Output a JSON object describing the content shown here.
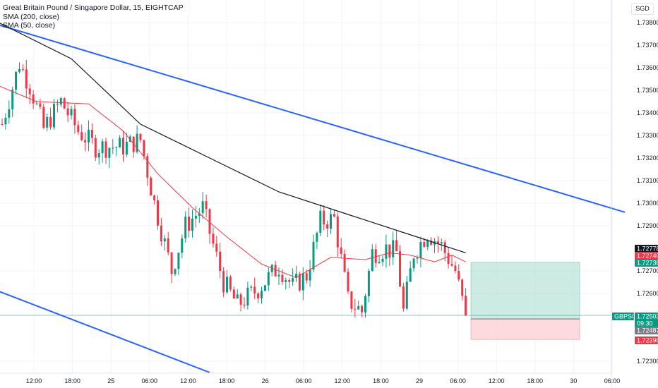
{
  "legend": {
    "title": "Great Britain Pound / Singapore Dollar, 15, EIGHTCAP",
    "sma200": "SMA (200, close)",
    "sma50": "SMA (50, close)"
  },
  "currency_button": "SGD",
  "colors": {
    "up": "#089981",
    "down": "#f23645",
    "sma200": "#131722",
    "sma50": "#f23645",
    "trendline": "#2962ff",
    "profit_zone": "#b2dfd4",
    "loss_zone": "#fbcdd2",
    "grid": "#f0f3fa"
  },
  "chart_data": {
    "type": "candlestick",
    "symbol": "GBPSGD",
    "interval": "15",
    "y_axis": {
      "min": 1.7225,
      "max": 1.7385,
      "ticks": [
        "1.73800",
        "1.73700",
        "1.73600",
        "1.73500",
        "1.73400",
        "1.73300",
        "1.73200",
        "1.73100",
        "1.73000",
        "1.72900",
        "1.72700",
        "1.72600",
        "1.72300"
      ]
    },
    "x_axis": {
      "ticks": [
        "12:00",
        "18:00",
        "25",
        "06:00",
        "12:00",
        "18:00",
        "26",
        "06:00",
        "12:00",
        "18:00",
        "29",
        "06:00",
        "12:00",
        "18:00",
        "30",
        "06:00"
      ]
    },
    "price_badges": [
      {
        "label": "1.72778",
        "kind": "sma200"
      },
      {
        "label": "1.72740",
        "kind": "sma50"
      },
      {
        "label": "1.72738",
        "kind": "target"
      },
      {
        "label": "GBPSGD",
        "kind": "symbol"
      },
      {
        "label": "1.72503",
        "kind": "last"
      },
      {
        "label": "09:30",
        "kind": "countdown"
      },
      {
        "label": "1.72487",
        "kind": "entry"
      },
      {
        "label": "1.72396",
        "kind": "stop"
      }
    ],
    "trade_box": {
      "entry": 1.72487,
      "target": 1.72738,
      "stop": 1.72396
    },
    "last_price": 1.72503,
    "key_points": [
      {
        "t": 0,
        "p": 1.7335
      },
      {
        "t": 5,
        "p": 1.7362
      },
      {
        "t": 8,
        "p": 1.7352
      },
      {
        "t": 12,
        "p": 1.7333
      },
      {
        "t": 17,
        "p": 1.7345
      },
      {
        "t": 22,
        "p": 1.7332
      },
      {
        "t": 27,
        "p": 1.7325
      },
      {
        "t": 35,
        "p": 1.7325
      },
      {
        "t": 40,
        "p": 1.7328
      },
      {
        "t": 44,
        "p": 1.73
      },
      {
        "t": 49,
        "p": 1.727
      },
      {
        "t": 53,
        "p": 1.729
      },
      {
        "t": 58,
        "p": 1.7298
      },
      {
        "t": 64,
        "p": 1.7265
      },
      {
        "t": 68,
        "p": 1.7255
      },
      {
        "t": 74,
        "p": 1.7262
      },
      {
        "t": 80,
        "p": 1.7272
      },
      {
        "t": 84,
        "p": 1.7263
      },
      {
        "t": 88,
        "p": 1.7268
      },
      {
        "t": 92,
        "p": 1.7292
      },
      {
        "t": 96,
        "p": 1.7293
      },
      {
        "t": 100,
        "p": 1.7257
      },
      {
        "t": 104,
        "p": 1.7252
      },
      {
        "t": 107,
        "p": 1.7278
      },
      {
        "t": 111,
        "p": 1.728
      },
      {
        "t": 114,
        "p": 1.7278
      },
      {
        "t": 116,
        "p": 1.7252
      },
      {
        "t": 119,
        "p": 1.7278
      },
      {
        "t": 123,
        "p": 1.7287
      },
      {
        "t": 127,
        "p": 1.7281
      },
      {
        "t": 131,
        "p": 1.727
      },
      {
        "t": 134,
        "p": 1.725
      }
    ],
    "sma200_points": [
      {
        "t": -1,
        "p": 1.738
      },
      {
        "t": 20,
        "p": 1.7364
      },
      {
        "t": 40,
        "p": 1.7335
      },
      {
        "t": 60,
        "p": 1.732
      },
      {
        "t": 80,
        "p": 1.7305
      },
      {
        "t": 100,
        "p": 1.7295
      },
      {
        "t": 120,
        "p": 1.7285
      },
      {
        "t": 134,
        "p": 1.7278
      }
    ],
    "sma50_points": [
      {
        "t": -1,
        "p": 1.7352
      },
      {
        "t": 10,
        "p": 1.7345
      },
      {
        "t": 25,
        "p": 1.7344
      },
      {
        "t": 35,
        "p": 1.7332
      },
      {
        "t": 45,
        "p": 1.7313
      },
      {
        "t": 55,
        "p": 1.7298
      },
      {
        "t": 65,
        "p": 1.7285
      },
      {
        "t": 75,
        "p": 1.7273
      },
      {
        "t": 85,
        "p": 1.7267
      },
      {
        "t": 95,
        "p": 1.7276
      },
      {
        "t": 105,
        "p": 1.7275
      },
      {
        "t": 112,
        "p": 1.7278
      },
      {
        "t": 118,
        "p": 1.7277
      },
      {
        "t": 125,
        "p": 1.7274
      },
      {
        "t": 130,
        "p": 1.7277
      },
      {
        "t": 134,
        "p": 1.7274
      }
    ],
    "trendlines": [
      {
        "from": {
          "t": -1,
          "p": 1.7379
        },
        "to": {
          "t": 180,
          "p": 1.7296
        }
      },
      {
        "from": {
          "t": -1,
          "p": 1.7261
        },
        "to": {
          "t": 60,
          "p": 1.7225
        }
      }
    ]
  }
}
